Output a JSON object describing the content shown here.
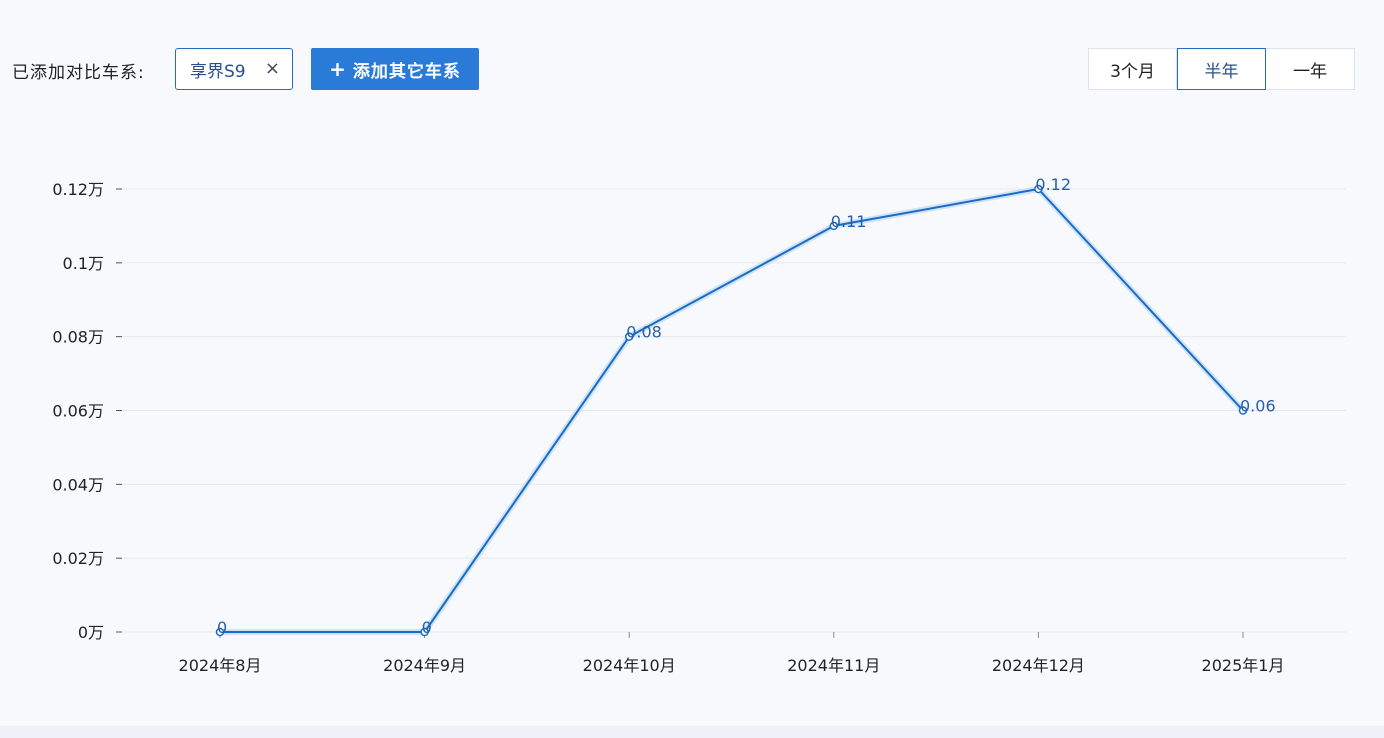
{
  "toolbar": {
    "compare_label": "已添加对比车系:",
    "series_chip": "享界S9",
    "chip_close": "×",
    "add_button": "添加其它车系",
    "ranges": [
      "3个月",
      "半年",
      "一年"
    ],
    "selected_range": "半年"
  },
  "colors": {
    "accent": "#2a7ad8",
    "line": "#1a6bc4",
    "grid": "#e4e9f0"
  },
  "chart_data": {
    "type": "line",
    "categories": [
      "2024年8月",
      "2024年9月",
      "2024年10月",
      "2024年11月",
      "2024年12月",
      "2025年1月"
    ],
    "series": [
      {
        "values": [
          0,
          0,
          0.08,
          0.11,
          0.12,
          0.06
        ]
      }
    ],
    "data_labels": [
      "0",
      "0",
      "0.08",
      "0.11",
      "0.12",
      "0.06"
    ],
    "yticks": [
      0,
      0.02,
      0.04,
      0.06,
      0.08,
      0.1,
      0.12
    ],
    "ytick_labels": [
      "0万",
      "0.02万",
      "0.04万",
      "0.06万",
      "0.08万",
      "0.1万",
      "0.12万"
    ],
    "ylim": [
      0,
      0.12
    ],
    "grid": true,
    "title": "",
    "xlabel": "",
    "ylabel": ""
  }
}
